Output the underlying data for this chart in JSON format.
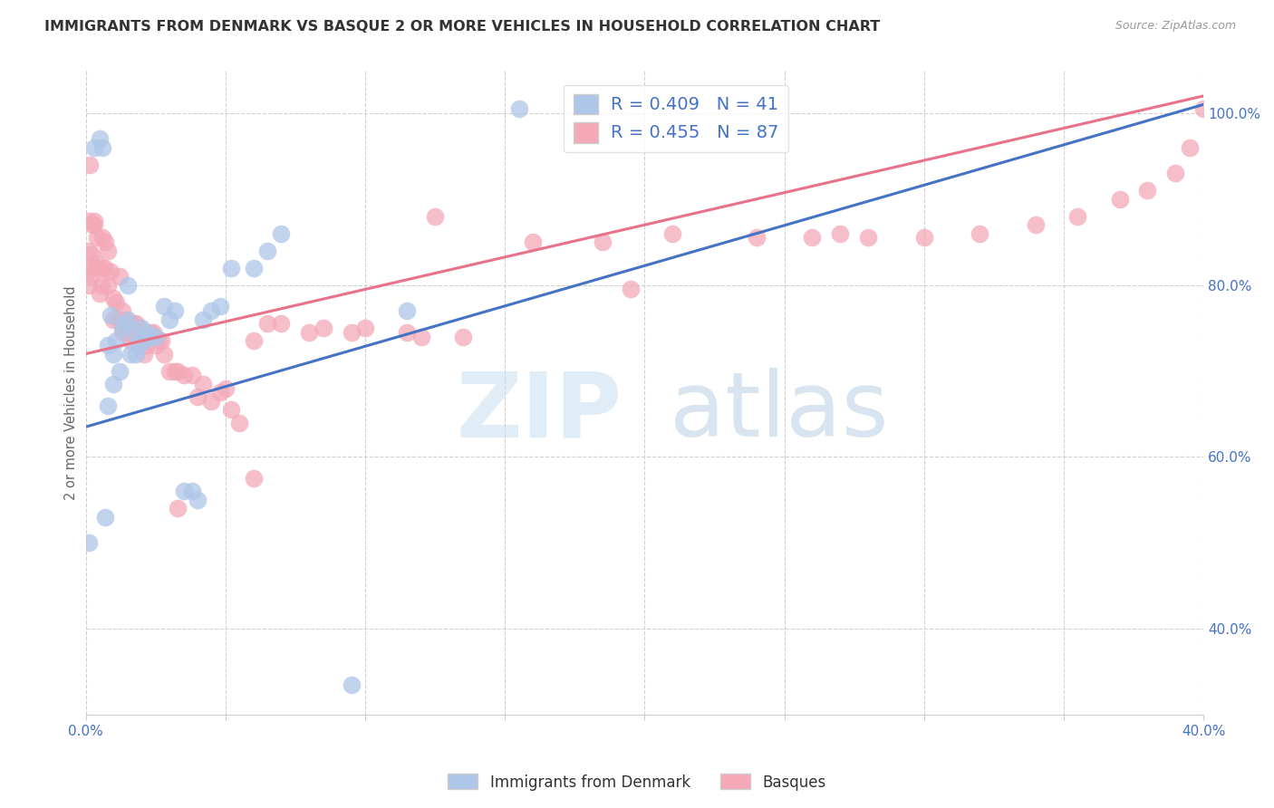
{
  "title": "IMMIGRANTS FROM DENMARK VS BASQUE 2 OR MORE VEHICLES IN HOUSEHOLD CORRELATION CHART",
  "source": "Source: ZipAtlas.com",
  "ylabel": "2 or more Vehicles in Household",
  "xlim": [
    0.0,
    0.4
  ],
  "ylim": [
    0.3,
    1.05
  ],
  "xtick_positions": [
    0.0,
    0.05,
    0.1,
    0.15,
    0.2,
    0.25,
    0.3,
    0.35,
    0.4
  ],
  "xtick_labels": [
    "0.0%",
    "",
    "",
    "",
    "",
    "",
    "",
    "",
    "40.0%"
  ],
  "ytick_vals_right": [
    0.4,
    0.6,
    0.8,
    1.0
  ],
  "ytick_labels_right": [
    "40.0%",
    "60.0%",
    "80.0%",
    "100.0%"
  ],
  "denmark_R": 0.409,
  "denmark_N": 41,
  "basque_R": 0.455,
  "basque_N": 87,
  "denmark_color": "#aec6e8",
  "basque_color": "#f4a8b8",
  "denmark_line_color": "#4472c4",
  "basque_line_color": "#e8728a",
  "background_color": "#ffffff",
  "grid_color": "#d0d0d0",
  "denmark_line_x0": 0.0,
  "denmark_line_y0": 0.635,
  "denmark_line_x1": 0.4,
  "denmark_line_y1": 1.01,
  "basque_line_x0": 0.0,
  "basque_line_y0": 0.72,
  "basque_line_x1": 0.4,
  "basque_line_y1": 1.02,
  "denmark_x": [
    0.001,
    0.003,
    0.005,
    0.006,
    0.007,
    0.008,
    0.008,
    0.009,
    0.01,
    0.01,
    0.011,
    0.012,
    0.013,
    0.014,
    0.015,
    0.015,
    0.016,
    0.017,
    0.018,
    0.019,
    0.02,
    0.021,
    0.022,
    0.023,
    0.025,
    0.028,
    0.03,
    0.032,
    0.035,
    0.038,
    0.04,
    0.042,
    0.045,
    0.048,
    0.052,
    0.06,
    0.065,
    0.07,
    0.095,
    0.115,
    0.155
  ],
  "denmark_y": [
    0.5,
    0.96,
    0.97,
    0.96,
    0.53,
    0.66,
    0.73,
    0.765,
    0.72,
    0.685,
    0.735,
    0.7,
    0.75,
    0.755,
    0.8,
    0.76,
    0.72,
    0.745,
    0.72,
    0.73,
    0.75,
    0.735,
    0.745,
    0.74,
    0.74,
    0.775,
    0.76,
    0.77,
    0.56,
    0.56,
    0.55,
    0.76,
    0.77,
    0.775,
    0.82,
    0.82,
    0.84,
    0.86,
    0.335,
    0.77,
    1.005
  ],
  "basque_x": [
    0.0005,
    0.001,
    0.001,
    0.001,
    0.002,
    0.002,
    0.003,
    0.003,
    0.004,
    0.004,
    0.005,
    0.006,
    0.006,
    0.007,
    0.007,
    0.008,
    0.008,
    0.009,
    0.01,
    0.01,
    0.011,
    0.012,
    0.013,
    0.013,
    0.014,
    0.015,
    0.015,
    0.016,
    0.017,
    0.018,
    0.019,
    0.02,
    0.021,
    0.022,
    0.023,
    0.024,
    0.025,
    0.026,
    0.027,
    0.028,
    0.03,
    0.032,
    0.033,
    0.035,
    0.038,
    0.04,
    0.042,
    0.045,
    0.048,
    0.05,
    0.052,
    0.055,
    0.06,
    0.065,
    0.07,
    0.08,
    0.085,
    0.095,
    0.1,
    0.115,
    0.12,
    0.135,
    0.16,
    0.185,
    0.21,
    0.24,
    0.26,
    0.27,
    0.28,
    0.3,
    0.32,
    0.34,
    0.355,
    0.37,
    0.38,
    0.39,
    0.395,
    0.4,
    0.0015,
    0.0025,
    0.003,
    0.0055,
    0.012,
    0.033,
    0.06,
    0.125,
    0.195
  ],
  "basque_y": [
    0.82,
    0.8,
    0.84,
    0.875,
    0.81,
    0.835,
    0.82,
    0.875,
    0.855,
    0.825,
    0.79,
    0.82,
    0.855,
    0.85,
    0.82,
    0.8,
    0.84,
    0.815,
    0.785,
    0.76,
    0.78,
    0.76,
    0.77,
    0.745,
    0.76,
    0.745,
    0.75,
    0.735,
    0.755,
    0.755,
    0.75,
    0.735,
    0.72,
    0.73,
    0.745,
    0.745,
    0.73,
    0.735,
    0.735,
    0.72,
    0.7,
    0.7,
    0.7,
    0.695,
    0.695,
    0.67,
    0.685,
    0.665,
    0.675,
    0.68,
    0.655,
    0.64,
    0.575,
    0.755,
    0.755,
    0.745,
    0.75,
    0.745,
    0.75,
    0.745,
    0.74,
    0.74,
    0.85,
    0.85,
    0.86,
    0.855,
    0.855,
    0.86,
    0.855,
    0.855,
    0.86,
    0.87,
    0.88,
    0.9,
    0.91,
    0.93,
    0.96,
    1.005,
    0.94,
    0.87,
    0.87,
    0.8,
    0.81,
    0.54,
    0.735,
    0.88,
    0.795
  ]
}
